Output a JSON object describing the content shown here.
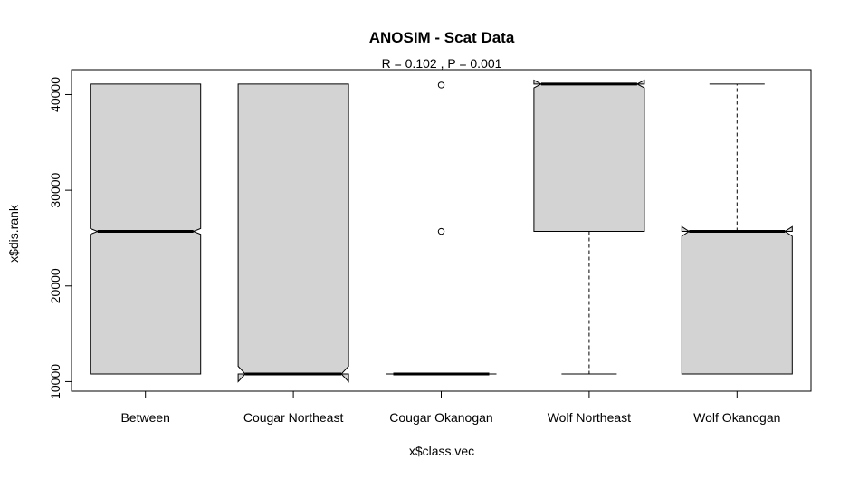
{
  "chart_data": {
    "type": "boxplot",
    "title": "ANOSIM - Scat Data",
    "subtitle": "R =  0.102 ,  P =  0.001",
    "xlabel": "x$class.vec",
    "ylabel": "x$dis.rank",
    "notched": true,
    "ylim": [
      9000,
      42600
    ],
    "yticks": [
      10000,
      20000,
      30000,
      40000
    ],
    "ytick_labels": [
      "10000",
      "20000",
      "30000",
      "40000"
    ],
    "box_fill": "#d3d3d3",
    "categories": [
      "Between",
      "Cougar Northeast",
      "Cougar Okanogan",
      "Wolf Northeast",
      "Wolf Okanogan"
    ],
    "boxes": [
      {
        "category": "Between",
        "min": 10800,
        "q1": 10800,
        "median": 25700,
        "q3": 41100,
        "max": 41100,
        "notch_low": 25400,
        "notch_high": 26000,
        "outliers": []
      },
      {
        "category": "Cougar Northeast",
        "min": 10800,
        "q1": 10800,
        "median": 10800,
        "q3": 41100,
        "max": 41100,
        "notch_low": 10000,
        "notch_high": 11600,
        "outliers": []
      },
      {
        "category": "Cougar Okanogan",
        "min": 10800,
        "q1": 10800,
        "median": 10800,
        "q3": 10800,
        "max": 10800,
        "notch_low": 10800,
        "notch_high": 10800,
        "outliers": [
          41000,
          25700
        ]
      },
      {
        "category": "Wolf Northeast",
        "min": 10800,
        "q1": 25700,
        "median": 41100,
        "q3": 41100,
        "max": 41100,
        "notch_low": 40700,
        "notch_high": 41500,
        "outliers": []
      },
      {
        "category": "Wolf Okanogan",
        "min": 10800,
        "q1": 10800,
        "median": 25700,
        "q3": 25700,
        "max": 41100,
        "notch_low": 25200,
        "notch_high": 26200,
        "outliers": []
      }
    ]
  }
}
